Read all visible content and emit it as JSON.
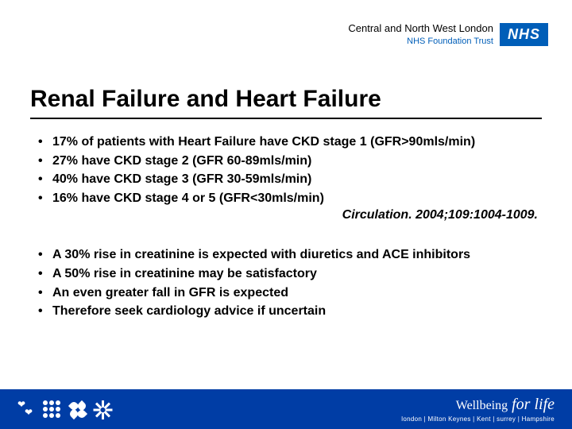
{
  "header": {
    "org_line1": "Central and North West London",
    "org_line2": "NHS Foundation Trust",
    "nhs_badge": "NHS"
  },
  "title": "Renal Failure and Heart Failure",
  "group1": [
    "17% of patients with Heart Failure have CKD stage 1 (GFR>90mls/min)",
    "27% have CKD stage 2 (GFR 60-89mls/min)",
    "40% have CKD stage 3 (GFR 30-59mls/min)",
    "16% have CKD stage 4 or 5 (GFR<30mls/min)"
  ],
  "citation": "Circulation. 2004;109:1004-1009.",
  "group2": [
    "A 30% rise in creatinine is expected with diuretics and ACE inhibitors",
    "A 50% rise in creatinine may be satisfactory",
    "An even greater fall in GFR is expected",
    "Therefore seek cardiology advice if uncertain"
  ],
  "footer": {
    "brand_prefix": "Wellbeing",
    "brand_script": " for life",
    "locations": "london | Milton Keynes | Kent | surrey | Hampshire"
  },
  "colors": {
    "nhs_blue": "#005eb8",
    "footer_blue": "#003da5",
    "text": "#000000",
    "white": "#ffffff"
  }
}
